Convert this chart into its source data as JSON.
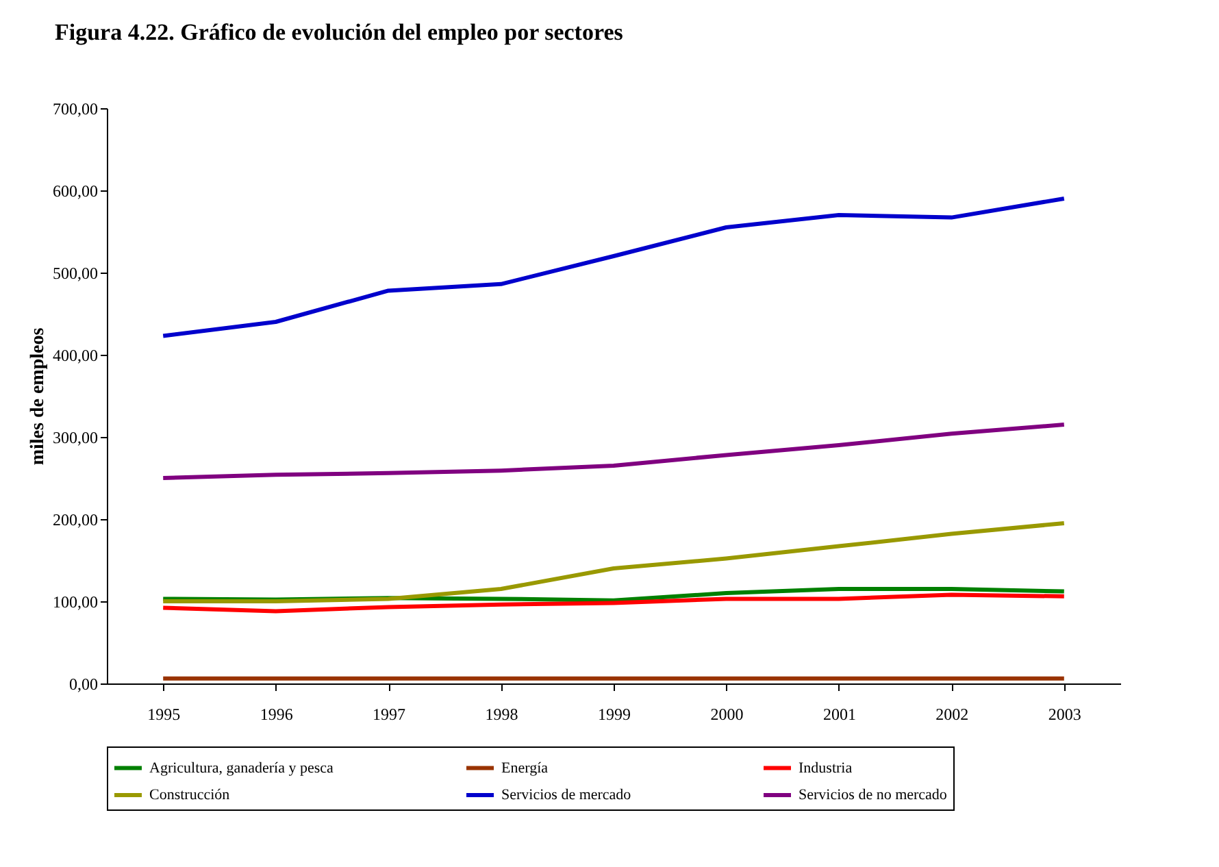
{
  "chart_data": {
    "type": "line",
    "title": "Figura 4.22. Gráfico de evolución del empleo por sectores",
    "ylabel": "miles de empleos",
    "categories": [
      "1995",
      "1996",
      "1997",
      "1998",
      "1999",
      "2000",
      "2001",
      "2002",
      "2003"
    ],
    "ylim": [
      0,
      700
    ],
    "yticks": [
      {
        "value": 0,
        "label": "0,00"
      },
      {
        "value": 100,
        "label": "100,00"
      },
      {
        "value": 200,
        "label": "200,00"
      },
      {
        "value": 300,
        "label": "300,00"
      },
      {
        "value": 400,
        "label": "400,00"
      },
      {
        "value": 500,
        "label": "500,00"
      },
      {
        "value": 600,
        "label": "600,00"
      },
      {
        "value": 700,
        "label": "700,00"
      }
    ],
    "grid": false,
    "legend": "bottom",
    "marker": "none",
    "line_style": "solid",
    "series": [
      {
        "name": "Agricultura, ganadería y pesca",
        "color": "#008000",
        "values": [
          103,
          102,
          104,
          103,
          101,
          110,
          115,
          115,
          112
        ]
      },
      {
        "name": "Energía",
        "color": "#993300",
        "values": [
          6,
          6,
          6,
          6,
          6,
          6,
          6,
          6,
          6
        ]
      },
      {
        "name": "Industria",
        "color": "#ff0000",
        "values": [
          92,
          88,
          93,
          96,
          98,
          103,
          103,
          108,
          106
        ]
      },
      {
        "name": "Construcción",
        "color": "#999900",
        "values": [
          100,
          100,
          103,
          115,
          140,
          152,
          167,
          182,
          195
        ]
      },
      {
        "name": "Servicios de mercado",
        "color": "#0000cc",
        "values": [
          423,
          440,
          478,
          486,
          520,
          555,
          570,
          567,
          590
        ]
      },
      {
        "name": "Servicios de no mercado",
        "color": "#800080",
        "values": [
          250,
          254,
          256,
          259,
          265,
          278,
          290,
          304,
          315
        ]
      }
    ]
  }
}
